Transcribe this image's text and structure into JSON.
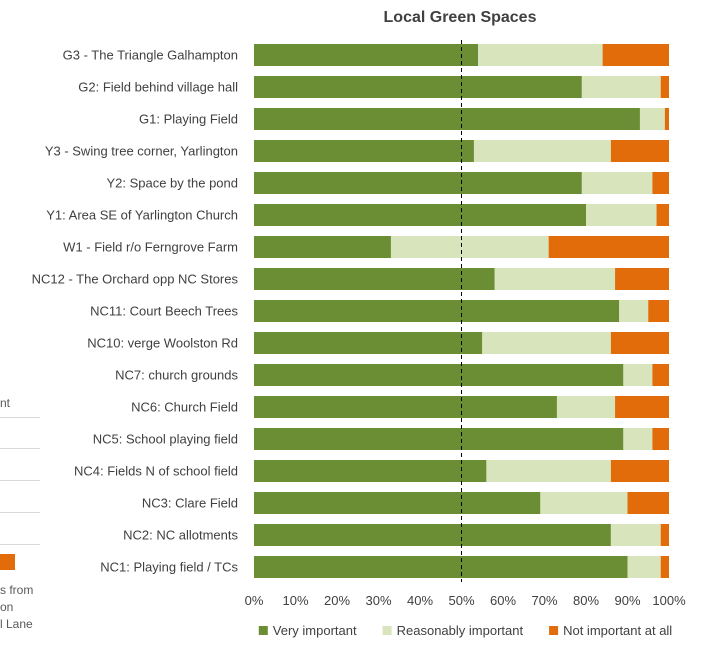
{
  "chart_data": {
    "type": "bar",
    "orientation": "horizontal",
    "stacked": "percent",
    "title": "Local Green Spaces",
    "categories": [
      "G3 - The Triangle Galhampton",
      "G2: Field behind village hall",
      "G1: Playing Field",
      "Y3 - Swing tree corner, Yarlington",
      "Y2: Space by the pond",
      "Y1: Area SE of Yarlington Church",
      "W1 - Field r/o Ferngrove Farm",
      "NC12 - The Orchard opp NC Stores",
      "NC11: Court  Beech Trees",
      "NC10: verge Woolston Rd",
      "NC7: church grounds",
      "NC6: Church Field",
      "NC5: School playing field",
      "NC4: Fields N of school field",
      "NC3: Clare Field",
      "NC2: NC allotments",
      "NC1: Playing field / TCs"
    ],
    "series": [
      {
        "name": "Very important",
        "color": "#6b8e34",
        "values": [
          54,
          79,
          93,
          53,
          79,
          80,
          33,
          58,
          88,
          55,
          89,
          73,
          89,
          56,
          69,
          86,
          90
        ]
      },
      {
        "name": "Reasonably important",
        "color": "#d8e4bc",
        "values": [
          30,
          19,
          6,
          33,
          17,
          17,
          38,
          29,
          7,
          31,
          7,
          14,
          7,
          30,
          21,
          12,
          8
        ]
      },
      {
        "name": "Not important at all",
        "color": "#e36c0a",
        "values": [
          16,
          2,
          1,
          14,
          4,
          3,
          29,
          13,
          5,
          14,
          4,
          13,
          4,
          14,
          10,
          2,
          2
        ]
      }
    ],
    "x_ticks": [
      "0%",
      "10%",
      "20%",
      "30%",
      "40%",
      "50%",
      "60%",
      "70%",
      "80%",
      "90%",
      "100%"
    ],
    "xlim": [
      0,
      100
    ],
    "reference_line": 50,
    "grid": false,
    "legend_position": "bottom"
  },
  "fragments": {
    "left_text": [
      "nt",
      "s from",
      "on",
      "l Lane"
    ]
  }
}
